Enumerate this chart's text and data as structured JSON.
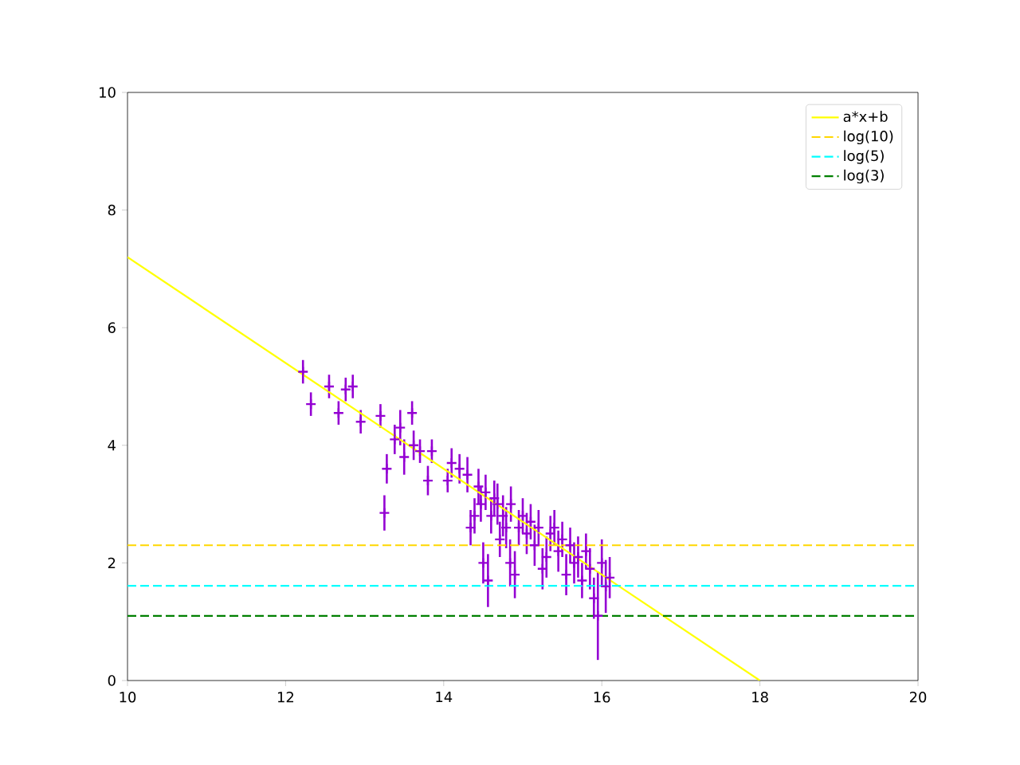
{
  "chart_data": {
    "type": "scatter",
    "xlim": [
      10,
      20
    ],
    "ylim": [
      0,
      10
    ],
    "xticks": [
      10,
      12,
      14,
      16,
      18,
      20
    ],
    "yticks": [
      0,
      2,
      4,
      6,
      8,
      10
    ],
    "legend": "top right",
    "series": [
      {
        "color": "#9400d3",
        "marker": "cross",
        "x": [
          12.22,
          12.32,
          12.55,
          12.67,
          12.76,
          12.85,
          12.95,
          13.2,
          13.25,
          13.28,
          13.38,
          13.45,
          13.5,
          13.6,
          13.62,
          13.7,
          13.8,
          13.85,
          14.05,
          14.1,
          14.2,
          14.3,
          14.34,
          14.39,
          14.44,
          14.47,
          14.5,
          14.53,
          14.56,
          14.6,
          14.64,
          14.68,
          14.71,
          14.75,
          14.79,
          14.84,
          14.85,
          14.9,
          14.95,
          15.0,
          15.05,
          15.1,
          15.15,
          15.2,
          15.25,
          15.3,
          15.35,
          15.4,
          15.45,
          15.5,
          15.55,
          15.6,
          15.65,
          15.7,
          15.75,
          15.8,
          15.85,
          15.9,
          15.95,
          16.0,
          16.05,
          16.1
        ],
        "values": [
          5.25,
          4.7,
          5.0,
          4.55,
          4.95,
          5.0,
          4.4,
          4.5,
          2.85,
          3.6,
          4.1,
          4.3,
          3.8,
          4.55,
          4.0,
          3.9,
          3.4,
          3.9,
          3.4,
          3.7,
          3.6,
          3.5,
          2.6,
          2.8,
          3.3,
          3.0,
          2.0,
          3.2,
          1.7,
          2.8,
          3.1,
          3.0,
          2.4,
          2.8,
          2.6,
          2.0,
          3.0,
          1.8,
          2.6,
          2.8,
          2.5,
          2.7,
          2.3,
          2.6,
          1.9,
          2.1,
          2.5,
          2.6,
          2.2,
          2.4,
          1.8,
          2.3,
          2.0,
          2.1,
          1.7,
          2.2,
          1.9,
          1.4,
          1.1,
          2.0,
          1.6,
          1.75
        ],
        "errors": [
          0.2,
          0.2,
          0.2,
          0.2,
          0.2,
          0.2,
          0.2,
          0.2,
          0.3,
          0.25,
          0.25,
          0.3,
          0.3,
          0.2,
          0.25,
          0.2,
          0.25,
          0.2,
          0.2,
          0.25,
          0.25,
          0.3,
          0.3,
          0.3,
          0.3,
          0.3,
          0.35,
          0.3,
          0.45,
          0.3,
          0.3,
          0.35,
          0.3,
          0.35,
          0.35,
          0.4,
          0.3,
          0.4,
          0.3,
          0.3,
          0.35,
          0.3,
          0.35,
          0.3,
          0.35,
          0.35,
          0.3,
          0.3,
          0.35,
          0.3,
          0.35,
          0.3,
          0.35,
          0.35,
          0.3,
          0.3,
          0.35,
          0.35,
          0.75,
          0.4,
          0.45,
          0.35
        ]
      },
      {
        "type": "line",
        "name": "a*x+b",
        "color": "#ffff00",
        "line_style": "solid",
        "x": [
          10,
          18
        ],
        "values": [
          7.2,
          0
        ]
      },
      {
        "type": "line",
        "name": "log(10)",
        "color": "#ffd700",
        "line_style": "dashed",
        "x": [
          10,
          20
        ],
        "values": [
          2.3,
          2.3
        ]
      },
      {
        "type": "line",
        "name": "log(5)",
        "color": "#00ffff",
        "line_style": "dashed",
        "x": [
          10,
          20
        ],
        "values": [
          1.61,
          1.61
        ]
      },
      {
        "type": "line",
        "name": "log(3)",
        "color": "#008000",
        "line_style": "dashed",
        "x": [
          10,
          20
        ],
        "values": [
          1.1,
          1.1
        ]
      }
    ]
  }
}
